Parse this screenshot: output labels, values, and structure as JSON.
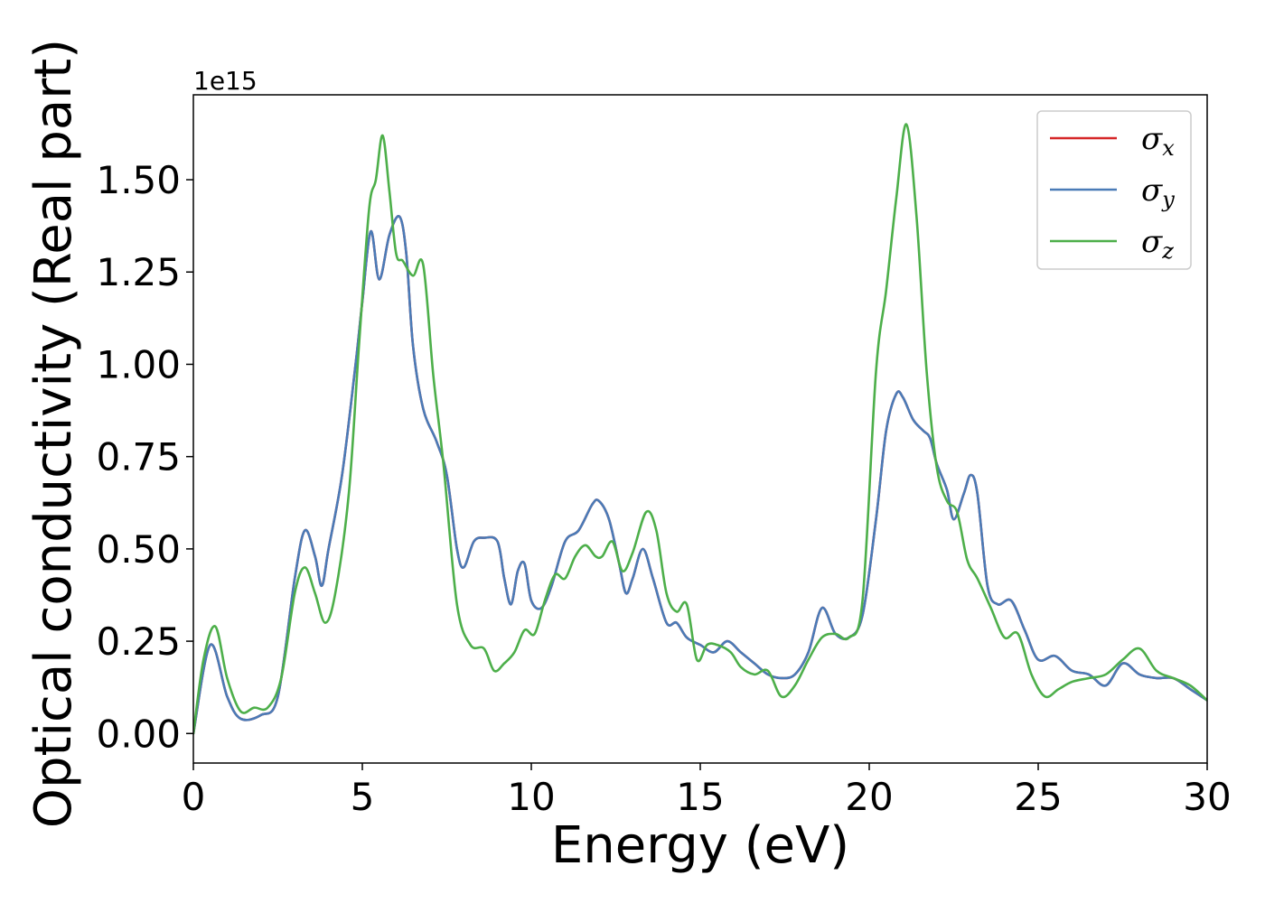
{
  "chart_data": {
    "type": "line",
    "xlabel": "Energy (eV)",
    "ylabel": "Optical conductivity (Real part)",
    "offset_text": "1e15",
    "xlim": [
      0,
      30
    ],
    "ylim": [
      -0.08,
      1.73
    ],
    "xticks": [
      0,
      5,
      10,
      15,
      20,
      25,
      30
    ],
    "xtick_labels": [
      "0",
      "5",
      "10",
      "15",
      "20",
      "25",
      "30"
    ],
    "yticks": [
      0.0,
      0.25,
      0.5,
      0.75,
      1.0,
      1.25,
      1.5
    ],
    "ytick_labels": [
      "0.00",
      "0.25",
      "0.50",
      "0.75",
      "1.00",
      "1.25",
      "1.50"
    ],
    "grid": false,
    "legend_position": "top-right",
    "series": [
      {
        "name": "σx",
        "name_base": "σ",
        "name_sub": "x",
        "color": "#d62728",
        "x": [
          0,
          0.5,
          1.0,
          1.4,
          2.0,
          2.5,
          3.0,
          3.3,
          3.6,
          3.8,
          4.0,
          4.4,
          4.8,
          5.0,
          5.25,
          5.5,
          5.8,
          6.1,
          6.3,
          6.5,
          6.8,
          7.2,
          7.5,
          7.8,
          8.0,
          8.3,
          8.6,
          9.0,
          9.2,
          9.4,
          9.6,
          9.8,
          10.0,
          10.3,
          10.6,
          11.0,
          11.4,
          11.8,
          12.0,
          12.3,
          12.6,
          12.8,
          13.0,
          13.3,
          13.6,
          14.0,
          14.3,
          14.6,
          15.0,
          15.4,
          15.8,
          16.2,
          16.6,
          17.0,
          17.4,
          17.8,
          18.2,
          18.6,
          19.0,
          19.4,
          19.8,
          20.2,
          20.5,
          20.8,
          21.0,
          21.3,
          21.6,
          21.8,
          22.0,
          22.3,
          22.5,
          22.8,
          23.0,
          23.2,
          23.5,
          23.8,
          24.2,
          24.6,
          25.0,
          25.5,
          26.0,
          26.5,
          27.0,
          27.5,
          28.0,
          28.5,
          29.0,
          29.5,
          30.0
        ],
        "y": [
          0.0,
          0.24,
          0.1,
          0.04,
          0.05,
          0.1,
          0.42,
          0.55,
          0.48,
          0.4,
          0.5,
          0.7,
          1.0,
          1.17,
          1.36,
          1.23,
          1.35,
          1.4,
          1.3,
          1.05,
          0.88,
          0.79,
          0.7,
          0.5,
          0.45,
          0.52,
          0.53,
          0.52,
          0.42,
          0.35,
          0.44,
          0.46,
          0.36,
          0.34,
          0.4,
          0.52,
          0.55,
          0.62,
          0.63,
          0.58,
          0.46,
          0.38,
          0.42,
          0.5,
          0.42,
          0.3,
          0.3,
          0.26,
          0.24,
          0.22,
          0.25,
          0.22,
          0.19,
          0.16,
          0.15,
          0.16,
          0.22,
          0.34,
          0.27,
          0.26,
          0.32,
          0.58,
          0.82,
          0.92,
          0.91,
          0.85,
          0.82,
          0.8,
          0.73,
          0.66,
          0.58,
          0.65,
          0.7,
          0.65,
          0.4,
          0.35,
          0.36,
          0.28,
          0.2,
          0.21,
          0.17,
          0.16,
          0.13,
          0.19,
          0.16,
          0.15,
          0.15,
          0.12,
          0.09
        ]
      },
      {
        "name": "σy",
        "name_base": "σ",
        "name_sub": "y",
        "color": "#4a7bb7",
        "x": [
          0,
          0.5,
          1.0,
          1.4,
          2.0,
          2.5,
          3.0,
          3.3,
          3.6,
          3.8,
          4.0,
          4.4,
          4.8,
          5.0,
          5.25,
          5.5,
          5.8,
          6.1,
          6.3,
          6.5,
          6.8,
          7.2,
          7.5,
          7.8,
          8.0,
          8.3,
          8.6,
          9.0,
          9.2,
          9.4,
          9.6,
          9.8,
          10.0,
          10.3,
          10.6,
          11.0,
          11.4,
          11.8,
          12.0,
          12.3,
          12.6,
          12.8,
          13.0,
          13.3,
          13.6,
          14.0,
          14.3,
          14.6,
          15.0,
          15.4,
          15.8,
          16.2,
          16.6,
          17.0,
          17.4,
          17.8,
          18.2,
          18.6,
          19.0,
          19.4,
          19.8,
          20.2,
          20.5,
          20.8,
          21.0,
          21.3,
          21.6,
          21.8,
          22.0,
          22.3,
          22.5,
          22.8,
          23.0,
          23.2,
          23.5,
          23.8,
          24.2,
          24.6,
          25.0,
          25.5,
          26.0,
          26.5,
          27.0,
          27.5,
          28.0,
          28.5,
          29.0,
          29.5,
          30.0
        ],
        "y": [
          0.0,
          0.24,
          0.1,
          0.04,
          0.05,
          0.1,
          0.42,
          0.55,
          0.48,
          0.4,
          0.5,
          0.7,
          1.0,
          1.17,
          1.36,
          1.23,
          1.35,
          1.4,
          1.3,
          1.05,
          0.88,
          0.79,
          0.7,
          0.5,
          0.45,
          0.52,
          0.53,
          0.52,
          0.42,
          0.35,
          0.44,
          0.46,
          0.36,
          0.34,
          0.4,
          0.52,
          0.55,
          0.62,
          0.63,
          0.58,
          0.46,
          0.38,
          0.42,
          0.5,
          0.42,
          0.3,
          0.3,
          0.26,
          0.24,
          0.22,
          0.25,
          0.22,
          0.19,
          0.16,
          0.15,
          0.16,
          0.22,
          0.34,
          0.27,
          0.26,
          0.32,
          0.58,
          0.82,
          0.92,
          0.91,
          0.85,
          0.82,
          0.8,
          0.73,
          0.66,
          0.58,
          0.65,
          0.7,
          0.65,
          0.4,
          0.35,
          0.36,
          0.28,
          0.2,
          0.21,
          0.17,
          0.16,
          0.13,
          0.19,
          0.16,
          0.15,
          0.15,
          0.12,
          0.09
        ]
      },
      {
        "name": "σz",
        "name_base": "σ",
        "name_sub": "z",
        "color": "#4daf4a",
        "x": [
          0,
          0.3,
          0.65,
          1.0,
          1.4,
          1.8,
          2.2,
          2.6,
          3.0,
          3.3,
          3.6,
          3.9,
          4.2,
          4.6,
          4.9,
          5.2,
          5.4,
          5.6,
          5.8,
          6.0,
          6.2,
          6.5,
          6.8,
          7.1,
          7.4,
          7.8,
          8.2,
          8.6,
          8.9,
          9.2,
          9.5,
          9.8,
          10.1,
          10.4,
          10.7,
          11.0,
          11.3,
          11.6,
          11.9,
          12.1,
          12.4,
          12.7,
          13.0,
          13.4,
          13.7,
          14.0,
          14.3,
          14.6,
          14.9,
          15.2,
          15.5,
          15.9,
          16.2,
          16.6,
          17.0,
          17.4,
          17.8,
          18.2,
          18.6,
          19.0,
          19.4,
          19.8,
          20.2,
          20.5,
          20.8,
          21.1,
          21.4,
          21.7,
          22.0,
          22.3,
          22.6,
          22.9,
          23.2,
          23.6,
          24.0,
          24.4,
          24.8,
          25.2,
          25.6,
          26.0,
          26.5,
          27.0,
          27.5,
          28.0,
          28.5,
          29.0,
          29.5,
          30.0
        ],
        "y": [
          0.0,
          0.2,
          0.29,
          0.15,
          0.06,
          0.07,
          0.07,
          0.15,
          0.38,
          0.45,
          0.38,
          0.3,
          0.38,
          0.65,
          1.05,
          1.42,
          1.5,
          1.62,
          1.47,
          1.3,
          1.28,
          1.24,
          1.27,
          0.97,
          0.73,
          0.35,
          0.24,
          0.23,
          0.17,
          0.19,
          0.22,
          0.28,
          0.27,
          0.36,
          0.43,
          0.42,
          0.48,
          0.51,
          0.48,
          0.48,
          0.52,
          0.44,
          0.49,
          0.6,
          0.55,
          0.38,
          0.33,
          0.35,
          0.2,
          0.24,
          0.24,
          0.22,
          0.18,
          0.16,
          0.17,
          0.1,
          0.13,
          0.2,
          0.26,
          0.27,
          0.26,
          0.36,
          0.98,
          1.2,
          1.45,
          1.65,
          1.4,
          0.98,
          0.72,
          0.63,
          0.6,
          0.47,
          0.42,
          0.34,
          0.26,
          0.27,
          0.16,
          0.1,
          0.12,
          0.14,
          0.15,
          0.16,
          0.2,
          0.23,
          0.17,
          0.15,
          0.13,
          0.09
        ]
      }
    ]
  }
}
